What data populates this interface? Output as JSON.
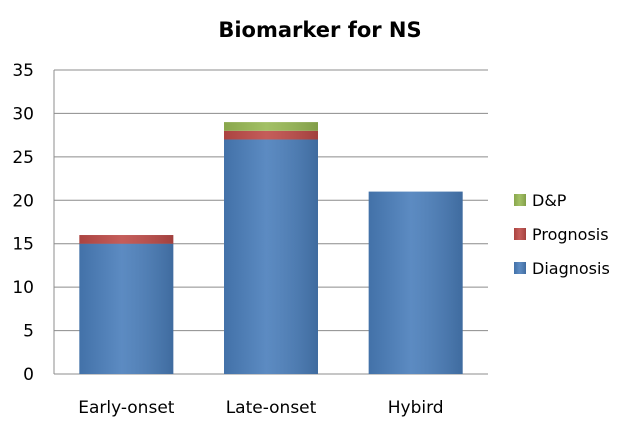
{
  "chart_data": {
    "type": "bar",
    "stacked": true,
    "title": "Biomarker for NS",
    "xlabel": "",
    "ylabel": "",
    "categories": [
      "Early-onset",
      "Late-onset",
      "Hybird"
    ],
    "ylim": [
      0,
      35
    ],
    "yticks": [
      0,
      5,
      10,
      15,
      20,
      25,
      30,
      35
    ],
    "grid": true,
    "legend_position": "right",
    "series": [
      {
        "name": "Diagnosis",
        "values": [
          15,
          27,
          21
        ],
        "color": "#4a7ebb"
      },
      {
        "name": "Prognosis",
        "values": [
          1,
          1,
          0
        ],
        "color": "#be4b48"
      },
      {
        "name": "D&P",
        "values": [
          0,
          1,
          0
        ],
        "color": "#98b954"
      }
    ],
    "legend_order": [
      "D&P",
      "Prognosis",
      "Diagnosis"
    ]
  }
}
